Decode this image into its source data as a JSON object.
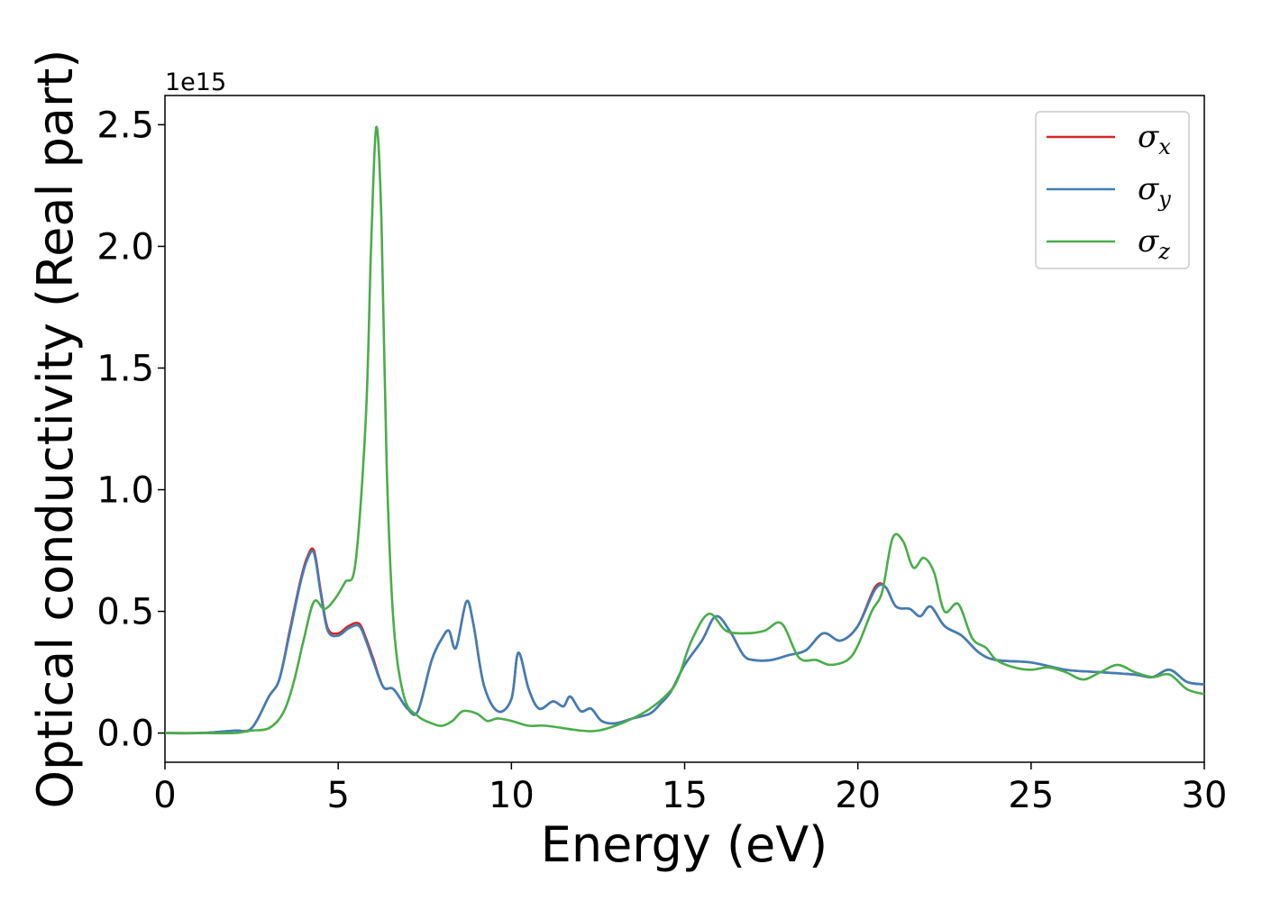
{
  "chart_data": {
    "type": "line",
    "title": "",
    "xlabel": "Energy (eV)",
    "ylabel": "Optical conductivity (Real part)",
    "y_offset_label": "1e15",
    "xlim": [
      0,
      30
    ],
    "ylim": [
      -0.12,
      2.62
    ],
    "x_ticks": [
      "0",
      "5",
      "10",
      "15",
      "20",
      "25",
      "30"
    ],
    "y_ticks": [
      "0.0",
      "0.5",
      "1.0",
      "1.5",
      "2.0",
      "2.5"
    ],
    "grid": false,
    "legend_position": "top-right",
    "series": [
      {
        "name": "σx",
        "symbol": "σ",
        "subscript": "x",
        "color": "#d62728",
        "x": [
          0,
          1,
          2,
          2.5,
          3,
          3.3,
          3.6,
          3.9,
          4.1,
          4.3,
          4.5,
          4.7,
          5.0,
          5.3,
          5.6,
          5.8,
          6.0,
          6.3,
          6.6,
          7.0,
          7.3,
          7.7,
          8.0,
          8.2,
          8.4,
          8.7,
          8.9,
          9.2,
          9.6,
          10.0,
          10.2,
          10.5,
          10.8,
          11.2,
          11.5,
          11.7,
          12.0,
          12.3,
          12.6,
          13.0,
          13.5,
          14.0,
          14.3,
          14.6,
          15.0,
          15.5,
          15.9,
          16.3,
          16.7,
          17.0,
          17.5,
          18.0,
          18.5,
          19.0,
          19.5,
          20.0,
          20.5,
          20.8,
          21.1,
          21.5,
          21.8,
          22.1,
          22.5,
          23.0,
          23.5,
          24.0,
          25.0,
          26.0,
          27.0,
          28.0,
          28.5,
          29.0,
          29.5,
          30.0
        ],
        "y": [
          0.0,
          0.0,
          0.01,
          0.02,
          0.15,
          0.22,
          0.42,
          0.62,
          0.72,
          0.75,
          0.58,
          0.43,
          0.41,
          0.44,
          0.45,
          0.39,
          0.31,
          0.19,
          0.18,
          0.1,
          0.09,
          0.3,
          0.39,
          0.42,
          0.35,
          0.54,
          0.45,
          0.2,
          0.09,
          0.14,
          0.33,
          0.18,
          0.1,
          0.13,
          0.11,
          0.15,
          0.09,
          0.1,
          0.05,
          0.04,
          0.06,
          0.08,
          0.12,
          0.17,
          0.28,
          0.38,
          0.48,
          0.42,
          0.32,
          0.3,
          0.3,
          0.32,
          0.34,
          0.41,
          0.38,
          0.44,
          0.6,
          0.6,
          0.52,
          0.51,
          0.48,
          0.52,
          0.44,
          0.4,
          0.33,
          0.3,
          0.29,
          0.26,
          0.25,
          0.24,
          0.23,
          0.26,
          0.21,
          0.2
        ]
      },
      {
        "name": "σy",
        "symbol": "σ",
        "subscript": "y",
        "color": "#3f7fb6",
        "x": [
          0,
          1,
          2,
          2.5,
          3,
          3.3,
          3.6,
          3.9,
          4.1,
          4.3,
          4.5,
          4.7,
          5.0,
          5.3,
          5.6,
          5.8,
          6.0,
          6.3,
          6.6,
          7.0,
          7.3,
          7.7,
          8.0,
          8.2,
          8.4,
          8.7,
          8.9,
          9.2,
          9.6,
          10.0,
          10.2,
          10.5,
          10.8,
          11.2,
          11.5,
          11.7,
          12.0,
          12.3,
          12.6,
          13.0,
          13.5,
          14.0,
          14.3,
          14.6,
          15.0,
          15.5,
          15.9,
          16.3,
          16.7,
          17.0,
          17.5,
          18.0,
          18.5,
          19.0,
          19.5,
          20.0,
          20.5,
          20.8,
          21.1,
          21.5,
          21.8,
          22.1,
          22.5,
          23.0,
          23.5,
          24.0,
          25.0,
          26.0,
          27.0,
          28.0,
          28.5,
          29.0,
          29.5,
          30.0
        ],
        "y": [
          0.0,
          0.0,
          0.01,
          0.02,
          0.15,
          0.22,
          0.41,
          0.61,
          0.71,
          0.74,
          0.57,
          0.42,
          0.4,
          0.43,
          0.44,
          0.38,
          0.3,
          0.19,
          0.18,
          0.1,
          0.09,
          0.3,
          0.39,
          0.42,
          0.35,
          0.54,
          0.45,
          0.2,
          0.09,
          0.14,
          0.33,
          0.18,
          0.1,
          0.13,
          0.11,
          0.15,
          0.09,
          0.1,
          0.05,
          0.04,
          0.06,
          0.08,
          0.12,
          0.17,
          0.28,
          0.38,
          0.48,
          0.42,
          0.32,
          0.3,
          0.3,
          0.32,
          0.34,
          0.41,
          0.38,
          0.44,
          0.59,
          0.6,
          0.52,
          0.51,
          0.48,
          0.52,
          0.44,
          0.4,
          0.33,
          0.3,
          0.29,
          0.26,
          0.25,
          0.24,
          0.23,
          0.26,
          0.21,
          0.2
        ]
      },
      {
        "name": "σz",
        "symbol": "σ",
        "subscript": "z",
        "color": "#4aad4a",
        "x": [
          0,
          1,
          2,
          2.5,
          3,
          3.4,
          3.7,
          4.0,
          4.3,
          4.6,
          4.9,
          5.2,
          5.5,
          5.8,
          5.95,
          6.1,
          6.25,
          6.4,
          6.6,
          6.9,
          7.3,
          7.7,
          8.0,
          8.3,
          8.6,
          9.0,
          9.3,
          9.6,
          10.0,
          10.5,
          11.0,
          12.0,
          12.5,
          13.0,
          13.5,
          14.0,
          14.5,
          14.8,
          15.2,
          15.7,
          16.2,
          16.8,
          17.3,
          17.8,
          18.3,
          18.8,
          19.2,
          19.7,
          20.0,
          20.4,
          20.7,
          21.0,
          21.3,
          21.6,
          21.9,
          22.2,
          22.5,
          22.9,
          23.3,
          23.7,
          24.0,
          24.5,
          25.0,
          25.5,
          26.0,
          26.5,
          27.0,
          27.5,
          28.0,
          28.5,
          29.0,
          29.5,
          30.0
        ],
        "y": [
          0.0,
          0.0,
          0.0,
          0.01,
          0.02,
          0.08,
          0.2,
          0.38,
          0.54,
          0.51,
          0.55,
          0.62,
          0.7,
          1.3,
          2.0,
          2.49,
          2.1,
          1.1,
          0.45,
          0.15,
          0.07,
          0.04,
          0.03,
          0.05,
          0.09,
          0.08,
          0.05,
          0.06,
          0.05,
          0.03,
          0.03,
          0.01,
          0.01,
          0.03,
          0.06,
          0.1,
          0.16,
          0.22,
          0.38,
          0.49,
          0.42,
          0.41,
          0.42,
          0.45,
          0.31,
          0.3,
          0.28,
          0.3,
          0.36,
          0.5,
          0.58,
          0.8,
          0.79,
          0.68,
          0.72,
          0.66,
          0.5,
          0.53,
          0.39,
          0.35,
          0.3,
          0.27,
          0.26,
          0.27,
          0.25,
          0.22,
          0.25,
          0.28,
          0.25,
          0.23,
          0.24,
          0.18,
          0.16
        ]
      }
    ]
  }
}
